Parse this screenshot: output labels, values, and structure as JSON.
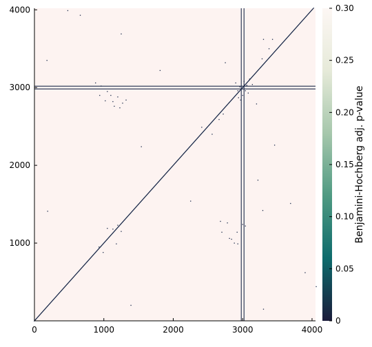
{
  "chart_data": {
    "type": "heatmap",
    "title": "",
    "xlabel": "",
    "ylabel": "",
    "xlim": [
      0,
      4050
    ],
    "ylim": [
      0,
      4020
    ],
    "x_ticks": [
      0,
      1000,
      2000,
      3000,
      4000
    ],
    "x_tick_labels": [
      "0",
      "1000",
      "2000",
      "3000",
      "4000"
    ],
    "y_ticks": [
      1000,
      2000,
      3000,
      4000
    ],
    "y_tick_labels": [
      "1000",
      "2000",
      "3000",
      "4000"
    ],
    "background_color": "#fdf3f1",
    "significant_color": "#1b2a4a",
    "diagonal": {
      "from": 0,
      "to": 4020
    },
    "highlight_lines": {
      "x": 3000,
      "y": 3000
    },
    "scattered_cells": [
      [
        480,
        3990
      ],
      [
        660,
        3930
      ],
      [
        180,
        3350
      ],
      [
        1250,
        3690
      ],
      [
        1810,
        3220
      ],
      [
        2750,
        3320
      ],
      [
        880,
        3060
      ],
      [
        960,
        3020
      ],
      [
        1050,
        2950
      ],
      [
        1100,
        2900
      ],
      [
        1200,
        2880
      ],
      [
        1320,
        2840
      ],
      [
        940,
        2900
      ],
      [
        1020,
        2830
      ],
      [
        1130,
        2820
      ],
      [
        1270,
        2800
      ],
      [
        1150,
        2760
      ],
      [
        1230,
        2740
      ],
      [
        2940,
        2870
      ],
      [
        2960,
        3010
      ],
      [
        3020,
        3080
      ],
      [
        3060,
        3030
      ],
      [
        3100,
        3110
      ],
      [
        3000,
        2900
      ],
      [
        2930,
        2960
      ],
      [
        3040,
        2960
      ],
      [
        2900,
        3060
      ],
      [
        3080,
        2930
      ],
      [
        2970,
        2840
      ],
      [
        3140,
        3040
      ],
      [
        3200,
        2790
      ],
      [
        3380,
        3500
      ],
      [
        3300,
        3620
      ],
      [
        3280,
        3370
      ],
      [
        3430,
        3620
      ],
      [
        2720,
        2660
      ],
      [
        2410,
        2490
      ],
      [
        2560,
        2400
      ],
      [
        2660,
        2590
      ],
      [
        1540,
        2240
      ],
      [
        3220,
        1810
      ],
      [
        3290,
        1420
      ],
      [
        3000,
        1240
      ],
      [
        3040,
        1220
      ],
      [
        2680,
        1280
      ],
      [
        2780,
        1260
      ],
      [
        2810,
        1060
      ],
      [
        2840,
        1050
      ],
      [
        2920,
        1140
      ],
      [
        2880,
        1000
      ],
      [
        2930,
        990
      ],
      [
        2700,
        1140
      ],
      [
        1130,
        1180
      ],
      [
        1050,
        1190
      ],
      [
        1200,
        1230
      ],
      [
        930,
        950
      ],
      [
        990,
        880
      ],
      [
        1180,
        990
      ],
      [
        1250,
        1150
      ],
      [
        190,
        1410
      ],
      [
        2250,
        1540
      ],
      [
        1390,
        200
      ],
      [
        3300,
        150
      ],
      [
        3690,
        1510
      ],
      [
        4060,
        440
      ],
      [
        3900,
        620
      ],
      [
        3460,
        2260
      ]
    ],
    "colorbar": {
      "label": "Benjamini-Hochberg adj. p-value",
      "ticks": [
        0,
        0.05,
        0.1,
        0.15,
        0.2,
        0.25,
        0.3
      ],
      "tick_labels": [
        "0",
        "0.05",
        "0.10",
        "0.15",
        "0.20",
        "0.25",
        "0.30"
      ],
      "range": [
        0,
        0.3
      ],
      "colors": [
        "#1a1b3a",
        "#0e6b6c",
        "#4f9a82",
        "#a6c7ac",
        "#e6ead9",
        "#fdf7f4"
      ]
    }
  }
}
